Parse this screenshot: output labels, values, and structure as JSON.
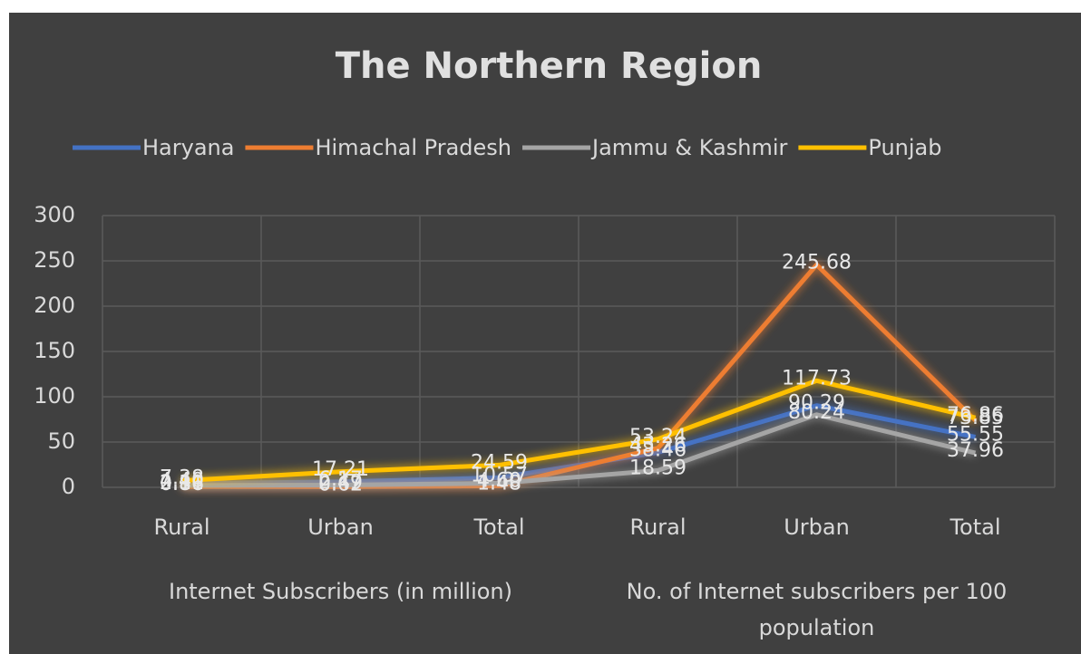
{
  "chart_data": {
    "type": "line",
    "title": "The Northern Region",
    "categories": [
      "Rural",
      "Urban",
      "Total",
      "Rural",
      "Urban",
      "Total"
    ],
    "category_groups": [
      "Internet Subscribers (in million)",
      "No. of Internet subscribers per 100 population"
    ],
    "series": [
      {
        "name": "Haryana",
        "color": "#4472c4",
        "values": [
          4.4,
          6.17,
          10.57,
          38.46,
          90.29,
          55.55
        ],
        "value_labels": [
          "4.40",
          "6.17",
          "10.57",
          "38.46",
          "90.29",
          "55.55"
        ]
      },
      {
        "name": "Himachal Pradesh",
        "color": "#ed7d31",
        "values": [
          0.86,
          0.62,
          1.48,
          43.26,
          245.68,
          73.85
        ],
        "value_labels": [
          "0.86",
          "0.62",
          "1.48",
          "43.26",
          "245.68",
          "73.85"
        ]
      },
      {
        "name": "Jammu & Kashmir",
        "color": "#a5a5a5",
        "values": [
          2.11,
          2.49,
          4.6,
          18.59,
          80.24,
          37.96
        ],
        "value_labels": [
          "2.11",
          "2.49",
          "4.60",
          "18.59",
          "80.24",
          "37.96"
        ]
      },
      {
        "name": "Punjab",
        "color": "#ffc000",
        "values": [
          7.38,
          17.21,
          24.59,
          53.24,
          117.73,
          76.86
        ],
        "value_labels": [
          "7.38",
          "17.21",
          "24.59",
          "53.24",
          "117.73",
          "76.86"
        ]
      }
    ],
    "ylim": [
      0,
      300
    ],
    "yticks": [
      0,
      50,
      100,
      150,
      200,
      250,
      300
    ],
    "grid": true,
    "legend": "top"
  }
}
